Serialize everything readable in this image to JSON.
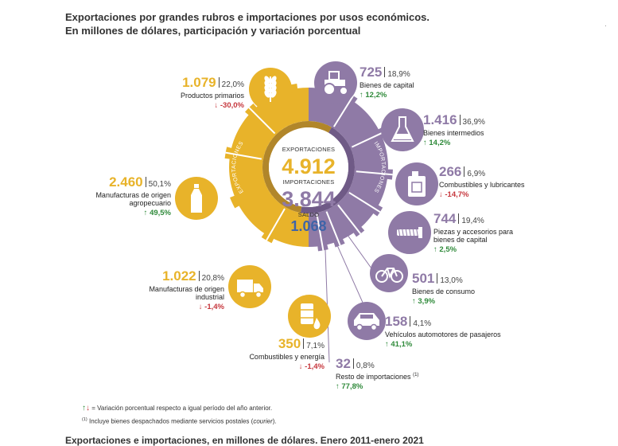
{
  "title_line1": "Exportaciones por grandes rubros e importaciones por usos económicos.",
  "title_line2": "En millones de dólares, participación y variación porcentual",
  "corner_mark": "·",
  "center": {
    "exp_label": "EXPORTACIONES",
    "exp_value": "4.912",
    "imp_label": "IMPORTACIONES",
    "imp_value": "3.844",
    "saldo_label": "SALDO",
    "saldo_value": "1.068",
    "ring_exp_label": "EXPORTACIONES",
    "ring_imp_label": "IMPORTACIONES"
  },
  "colors": {
    "exports": "#e8b32a",
    "imports": "#8f7aa6",
    "saldo": "#3e64a8",
    "up": "#2f8a3a",
    "down": "#c6363c"
  },
  "exports": [
    {
      "value": "1.079",
      "share": "22,0%",
      "label": "Productos primarios",
      "arrow": "↓",
      "variation": "-30,0%",
      "dir": "down",
      "icon": "wheat-icon"
    },
    {
      "value": "2.460",
      "share": "50,1%",
      "label": "Manufacturas de origen agropecuario",
      "arrow": "↑",
      "variation": "49,5%",
      "dir": "up",
      "icon": "bottle-icon"
    },
    {
      "value": "1.022",
      "share": "20,8%",
      "label": "Manufacturas de origen industrial",
      "arrow": "↓",
      "variation": "-1,4%",
      "dir": "down",
      "icon": "truck-icon"
    },
    {
      "value": "350",
      "share": "7,1%",
      "label": "Combustibles y energía",
      "arrow": "↓",
      "variation": "-1,4%",
      "dir": "down",
      "icon": "fuel-barrel-icon"
    }
  ],
  "imports": [
    {
      "value": "725",
      "share": "18,9%",
      "label": "Bienes de capital",
      "arrow": "↑",
      "variation": "12,2%",
      "dir": "up",
      "icon": "tractor-icon"
    },
    {
      "value": "1.416",
      "share": "36,9%",
      "label": "Bienes intermedios",
      "arrow": "↑",
      "variation": "14,2%",
      "dir": "up",
      "icon": "flask-icon"
    },
    {
      "value": "266",
      "share": "6,9%",
      "label": "Combustibles y lubricantes",
      "arrow": "↓",
      "variation": "-14,7%",
      "dir": "down",
      "icon": "jerrycan-icon"
    },
    {
      "value": "744",
      "share": "19,4%",
      "label": "Piezas y accesorios para bienes de capital",
      "arrow": "↑",
      "variation": "2,5%",
      "dir": "up",
      "icon": "screw-icon"
    },
    {
      "value": "501",
      "share": "13,0%",
      "label": "Bienes de consumo",
      "arrow": "↑",
      "variation": "3,9%",
      "dir": "up",
      "icon": "bicycle-icon"
    },
    {
      "value": "158",
      "share": "4,1%",
      "label": "Vehículos automotores de pasajeros",
      "arrow": "↑",
      "variation": "41,1%",
      "dir": "up",
      "icon": "car-icon"
    },
    {
      "value": "32",
      "share": "0,8%",
      "label": "Resto de importaciones",
      "label_note": "(1)",
      "arrow": "↑",
      "variation": "77,8%",
      "dir": "up",
      "icon": ""
    }
  ],
  "footnotes": {
    "legend_up": "↑",
    "legend_down": "↓",
    "legend_text": "= Variación porcentual respecto a igual período del año anterior.",
    "note_mark": "(1)",
    "note_text_a": "Incluye bienes despachados mediante servicios postales (",
    "note_text_em": "courier",
    "note_text_b": ")."
  },
  "bottom_title": "Exportaciones e importaciones, en millones de dólares. Enero 2011-enero 2021"
}
